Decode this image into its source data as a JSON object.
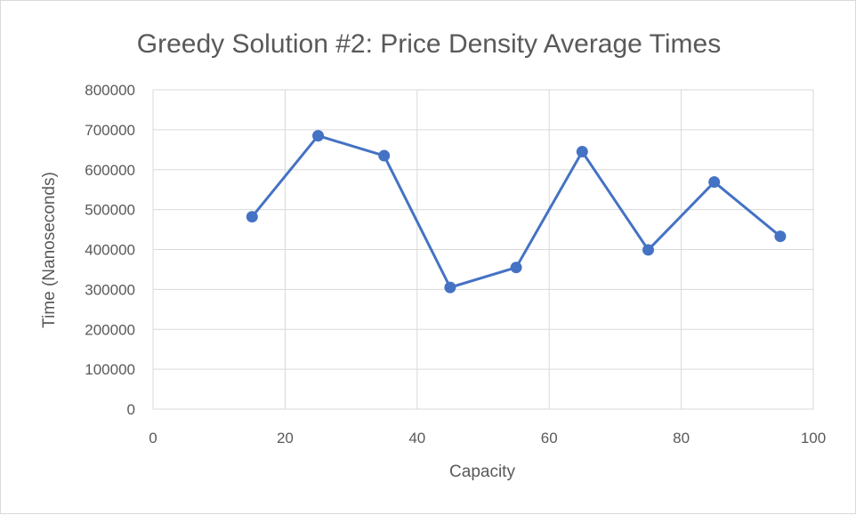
{
  "chart_data": {
    "type": "scatter",
    "title": "Greedy Solution #2: Price Density Average Times",
    "xlabel": "Capacity",
    "ylabel": "Time (Nanoseconds)",
    "xlim": [
      0,
      100
    ],
    "ylim": [
      0,
      800000
    ],
    "x_ticks": [
      "0",
      "20",
      "40",
      "60",
      "80",
      "100"
    ],
    "y_ticks": [
      "0",
      "100000",
      "200000",
      "300000",
      "400000",
      "500000",
      "600000",
      "700000",
      "800000"
    ],
    "grid": true,
    "legend": "none",
    "colors": {
      "series": "#4472c4",
      "grid": "#d9d9d9",
      "text": "#595959"
    },
    "series": [
      {
        "style": "line-with-markers",
        "x": [
          15,
          25,
          35,
          45,
          55,
          65,
          75,
          85,
          95
        ],
        "y": [
          482000,
          685000,
          635000,
          305000,
          355000,
          645000,
          399000,
          569000,
          433000
        ]
      }
    ]
  }
}
